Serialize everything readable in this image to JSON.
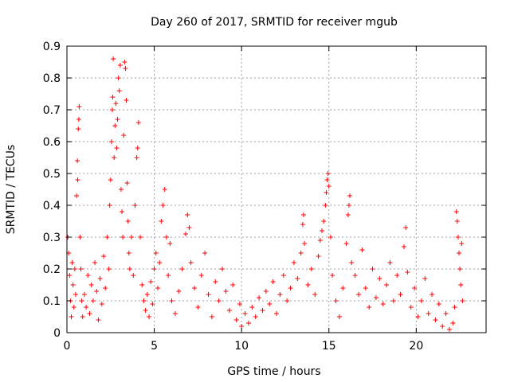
{
  "chart_data": {
    "type": "scatter",
    "title": "Day 260 of 2017, SRMTID for receiver mgub",
    "xlabel": "GPS time / hours",
    "ylabel": "SRMTID / TECUs",
    "xlim": [
      0,
      24
    ],
    "ylim": [
      0,
      0.9
    ],
    "xticks": [
      0,
      5,
      10,
      15,
      20
    ],
    "yticks": [
      0,
      0.1,
      0.2,
      0.3,
      0.4,
      0.5,
      0.6,
      0.7,
      0.8,
      0.9
    ],
    "xtick_labels": [
      "0",
      "5",
      "10",
      "15",
      "20"
    ],
    "ytick_labels": [
      "0",
      "0.1",
      "0.2",
      "0.3",
      "0.4",
      "0.5",
      "0.6",
      "0.7",
      "0.8",
      "0.9"
    ],
    "grid": true,
    "marker": "+",
    "color": "#ff0000",
    "series": [
      {
        "name": "SRMTID",
        "points": [
          [
            0.05,
            0.3
          ],
          [
            0.1,
            0.25
          ],
          [
            0.15,
            0.18
          ],
          [
            0.2,
            0.1
          ],
          [
            0.25,
            0.05
          ],
          [
            0.3,
            0.22
          ],
          [
            0.35,
            0.15
          ],
          [
            0.4,
            0.08
          ],
          [
            0.45,
            0.2
          ],
          [
            0.5,
            0.12
          ],
          [
            0.55,
            0.43
          ],
          [
            0.6,
            0.54
          ],
          [
            0.62,
            0.48
          ],
          [
            0.65,
            0.64
          ],
          [
            0.68,
            0.67
          ],
          [
            0.7,
            0.71
          ],
          [
            0.75,
            0.3
          ],
          [
            0.8,
            0.2
          ],
          [
            0.85,
            0.1
          ],
          [
            0.9,
            0.05
          ],
          [
            1.0,
            0.12
          ],
          [
            1.1,
            0.08
          ],
          [
            1.2,
            0.18
          ],
          [
            1.3,
            0.06
          ],
          [
            1.4,
            0.15
          ],
          [
            1.5,
            0.1
          ],
          [
            1.6,
            0.22
          ],
          [
            1.7,
            0.13
          ],
          [
            1.8,
            0.04
          ],
          [
            1.9,
            0.17
          ],
          [
            2.0,
            0.09
          ],
          [
            2.1,
            0.24
          ],
          [
            2.2,
            0.14
          ],
          [
            2.3,
            0.3
          ],
          [
            2.4,
            0.2
          ],
          [
            2.45,
            0.4
          ],
          [
            2.5,
            0.48
          ],
          [
            2.55,
            0.6
          ],
          [
            2.6,
            0.7
          ],
          [
            2.62,
            0.74
          ],
          [
            2.65,
            0.86
          ],
          [
            2.7,
            0.55
          ],
          [
            2.75,
            0.65
          ],
          [
            2.8,
            0.72
          ],
          [
            2.85,
            0.58
          ],
          [
            2.9,
            0.67
          ],
          [
            2.95,
            0.8
          ],
          [
            3.0,
            0.76
          ],
          [
            3.05,
            0.84
          ],
          [
            3.1,
            0.45
          ],
          [
            3.15,
            0.38
          ],
          [
            3.2,
            0.3
          ],
          [
            3.25,
            0.62
          ],
          [
            3.3,
            0.85
          ],
          [
            3.35,
            0.83
          ],
          [
            3.4,
            0.73
          ],
          [
            3.45,
            0.47
          ],
          [
            3.5,
            0.35
          ],
          [
            3.55,
            0.25
          ],
          [
            3.6,
            0.2
          ],
          [
            3.7,
            0.3
          ],
          [
            3.8,
            0.18
          ],
          [
            3.9,
            0.4
          ],
          [
            4.0,
            0.55
          ],
          [
            4.05,
            0.58
          ],
          [
            4.1,
            0.66
          ],
          [
            4.2,
            0.3
          ],
          [
            4.3,
            0.15
          ],
          [
            4.4,
            0.1
          ],
          [
            4.5,
            0.07
          ],
          [
            4.6,
            0.12
          ],
          [
            4.7,
            0.05
          ],
          [
            4.8,
            0.16
          ],
          [
            4.9,
            0.09
          ],
          [
            5.0,
            0.2
          ],
          [
            5.1,
            0.25
          ],
          [
            5.2,
            0.14
          ],
          [
            5.3,
            0.22
          ],
          [
            5.4,
            0.35
          ],
          [
            5.5,
            0.4
          ],
          [
            5.6,
            0.45
          ],
          [
            5.7,
            0.3
          ],
          [
            5.8,
            0.18
          ],
          [
            5.9,
            0.28
          ],
          [
            6.0,
            0.1
          ],
          [
            6.2,
            0.06
          ],
          [
            6.4,
            0.13
          ],
          [
            6.6,
            0.2
          ],
          [
            6.8,
            0.31
          ],
          [
            6.9,
            0.37
          ],
          [
            7.0,
            0.33
          ],
          [
            7.1,
            0.22
          ],
          [
            7.3,
            0.14
          ],
          [
            7.5,
            0.08
          ],
          [
            7.7,
            0.18
          ],
          [
            7.9,
            0.25
          ],
          [
            8.1,
            0.12
          ],
          [
            8.3,
            0.05
          ],
          [
            8.5,
            0.16
          ],
          [
            8.7,
            0.1
          ],
          [
            8.9,
            0.2
          ],
          [
            9.1,
            0.13
          ],
          [
            9.3,
            0.07
          ],
          [
            9.5,
            0.15
          ],
          [
            9.7,
            0.04
          ],
          [
            9.9,
            0.09
          ],
          [
            10.0,
            0.02
          ],
          [
            10.2,
            0.06
          ],
          [
            10.4,
            0.03
          ],
          [
            10.6,
            0.08
          ],
          [
            10.8,
            0.05
          ],
          [
            11.0,
            0.11
          ],
          [
            11.2,
            0.07
          ],
          [
            11.4,
            0.13
          ],
          [
            11.6,
            0.09
          ],
          [
            11.8,
            0.16
          ],
          [
            12.0,
            0.06
          ],
          [
            12.2,
            0.12
          ],
          [
            12.4,
            0.18
          ],
          [
            12.6,
            0.1
          ],
          [
            12.8,
            0.14
          ],
          [
            13.0,
            0.22
          ],
          [
            13.2,
            0.17
          ],
          [
            13.4,
            0.25
          ],
          [
            13.5,
            0.34
          ],
          [
            13.55,
            0.37
          ],
          [
            13.6,
            0.28
          ],
          [
            13.8,
            0.15
          ],
          [
            14.0,
            0.2
          ],
          [
            14.2,
            0.12
          ],
          [
            14.4,
            0.24
          ],
          [
            14.5,
            0.29
          ],
          [
            14.6,
            0.32
          ],
          [
            14.7,
            0.35
          ],
          [
            14.8,
            0.4
          ],
          [
            14.85,
            0.44
          ],
          [
            14.9,
            0.48
          ],
          [
            14.95,
            0.5
          ],
          [
            15.0,
            0.46
          ],
          [
            15.1,
            0.3
          ],
          [
            15.2,
            0.18
          ],
          [
            15.4,
            0.1
          ],
          [
            15.6,
            0.05
          ],
          [
            15.8,
            0.14
          ],
          [
            16.0,
            0.28
          ],
          [
            16.1,
            0.37
          ],
          [
            16.15,
            0.4
          ],
          [
            16.2,
            0.43
          ],
          [
            16.3,
            0.22
          ],
          [
            16.5,
            0.18
          ],
          [
            16.7,
            0.12
          ],
          [
            16.9,
            0.26
          ],
          [
            17.1,
            0.14
          ],
          [
            17.3,
            0.08
          ],
          [
            17.5,
            0.2
          ],
          [
            17.7,
            0.11
          ],
          [
            17.9,
            0.17
          ],
          [
            18.1,
            0.09
          ],
          [
            18.3,
            0.15
          ],
          [
            18.5,
            0.22
          ],
          [
            18.7,
            0.1
          ],
          [
            18.9,
            0.18
          ],
          [
            19.1,
            0.12
          ],
          [
            19.3,
            0.27
          ],
          [
            19.4,
            0.33
          ],
          [
            19.5,
            0.19
          ],
          [
            19.7,
            0.08
          ],
          [
            19.9,
            0.14
          ],
          [
            20.1,
            0.05
          ],
          [
            20.3,
            0.1
          ],
          [
            20.5,
            0.17
          ],
          [
            20.7,
            0.06
          ],
          [
            20.9,
            0.12
          ],
          [
            21.1,
            0.04
          ],
          [
            21.3,
            0.09
          ],
          [
            21.5,
            0.02
          ],
          [
            21.7,
            0.06
          ],
          [
            21.9,
            0.01
          ],
          [
            22.1,
            0.03
          ],
          [
            22.2,
            0.08
          ],
          [
            22.3,
            0.38
          ],
          [
            22.35,
            0.35
          ],
          [
            22.4,
            0.3
          ],
          [
            22.45,
            0.25
          ],
          [
            22.5,
            0.2
          ],
          [
            22.55,
            0.15
          ],
          [
            22.6,
            0.28
          ],
          [
            22.65,
            0.1
          ]
        ]
      }
    ]
  }
}
